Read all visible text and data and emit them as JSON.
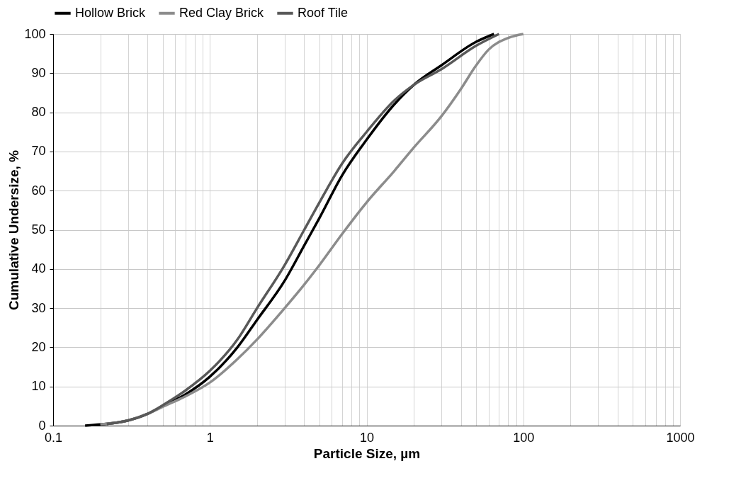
{
  "chart_data": {
    "type": "line",
    "xlabel": "Particle Size, µm",
    "ylabel": "Cumulative Undersize, %",
    "log": "x",
    "grid": true,
    "legend": "top",
    "marker": "none",
    "line_style": "solid",
    "xlim": [
      0.1,
      1000
    ],
    "ylim": [
      0,
      100
    ],
    "xticks": [
      0.1,
      {
        "value": 0.2,
        "label": null
      },
      {
        "value": 0.3,
        "label": null
      },
      {
        "value": 0.4,
        "label": null
      },
      {
        "value": 0.5,
        "label": null
      },
      {
        "value": 0.6,
        "label": null
      },
      {
        "value": 0.7,
        "label": null
      },
      {
        "value": 0.8,
        "label": null
      },
      {
        "value": 0.9,
        "label": null
      },
      1,
      {
        "value": 2,
        "label": null
      },
      {
        "value": 3,
        "label": null
      },
      {
        "value": 4,
        "label": null
      },
      {
        "value": 5,
        "label": null
      },
      {
        "value": 6,
        "label": null
      },
      {
        "value": 7,
        "label": null
      },
      {
        "value": 8,
        "label": null
      },
      {
        "value": 9,
        "label": null
      },
      10,
      {
        "value": 20,
        "label": null
      },
      {
        "value": 30,
        "label": null
      },
      {
        "value": 40,
        "label": null
      },
      {
        "value": 50,
        "label": null
      },
      {
        "value": 60,
        "label": null
      },
      {
        "value": 70,
        "label": null
      },
      {
        "value": 80,
        "label": null
      },
      {
        "value": 90,
        "label": null
      },
      100,
      {
        "value": 200,
        "label": null
      },
      {
        "value": 300,
        "label": null
      },
      {
        "value": 400,
        "label": null
      },
      {
        "value": 500,
        "label": null
      },
      {
        "value": 600,
        "label": null
      },
      {
        "value": 700,
        "label": null
      },
      {
        "value": 800,
        "label": null
      },
      {
        "value": 900,
        "label": null
      },
      1000
    ],
    "yticks": [
      0,
      10,
      20,
      30,
      40,
      50,
      60,
      70,
      80,
      90,
      100
    ],
    "series": [
      {
        "name": "Hollow Brick",
        "color": "#000000",
        "x": [
          0.16,
          0.2,
          0.3,
          0.4,
          0.5,
          0.7,
          1,
          1.5,
          2,
          3,
          4,
          5,
          7,
          10,
          15,
          20,
          30,
          50,
          65
        ],
        "values": [
          0,
          0.3,
          1.3,
          3,
          5,
          8,
          12.5,
          20,
          27,
          37,
          46,
          53,
          64,
          73,
          82,
          87,
          92,
          98,
          100
        ]
      },
      {
        "name": "Red Clay Brick",
        "color": "#8c8c8c",
        "x": [
          0.2,
          0.3,
          0.4,
          0.5,
          0.7,
          1,
          1.5,
          2,
          3,
          4,
          5,
          7,
          10,
          15,
          20,
          30,
          40,
          50,
          60,
          80,
          100
        ],
        "values": [
          0.3,
          1.3,
          3,
          4.8,
          7.5,
          11,
          17,
          22,
          30,
          36,
          41,
          49,
          57,
          65,
          71,
          79,
          86,
          92,
          96,
          99,
          100
        ]
      },
      {
        "name": "Roof Tile",
        "color": "#595959",
        "x": [
          0.22,
          0.3,
          0.4,
          0.5,
          0.7,
          1,
          1.5,
          2,
          3,
          4,
          5,
          7,
          10,
          15,
          20,
          30,
          50,
          70
        ],
        "values": [
          0.4,
          1.3,
          3,
          5.2,
          9,
          14,
          22,
          30,
          41,
          50,
          57,
          67,
          75,
          83,
          87,
          91,
          97,
          100
        ]
      }
    ]
  }
}
